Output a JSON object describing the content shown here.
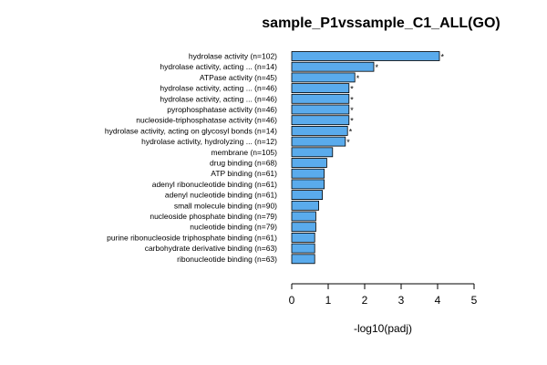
{
  "chart_data": {
    "type": "bar",
    "orientation": "horizontal",
    "title": "sample_P1vssample_C1_ALL(GO)",
    "xlabel": "-log10(padj)",
    "ylabel": "",
    "xlim": [
      0,
      5
    ],
    "xticks": [
      "0",
      "1",
      "2",
      "3",
      "4",
      "5"
    ],
    "grid": false,
    "bar_color": "#5aabec",
    "bar_border_color": "#000000",
    "categories": [
      "hydrolase activity (n=102)",
      "hydrolase activity, acting ... (n=14)",
      "ATPase activity (n=45)",
      "hydrolase activity, acting ... (n=46)",
      "hydrolase activity, acting ... (n=46)",
      "pyrophosphatase activity (n=46)",
      "nucleoside-triphosphatase activity (n=46)",
      "hydrolase activity, acting on glycosyl bonds (n=14)",
      "hydrolase activity, hydrolyzing ... (n=12)",
      "membrane (n=105)",
      "drug binding (n=68)",
      "ATP binding (n=61)",
      "adenyl ribonucleotide binding (n=61)",
      "adenyl nucleotide binding (n=61)",
      "small molecule binding (n=90)",
      "nucleoside phosphate binding (n=79)",
      "nucleotide binding (n=79)",
      "purine ribonucleoside triphosphate binding (n=61)",
      "carbohydrate derivative binding (n=63)",
      "ribonucleotide binding (n=63)"
    ],
    "values": [
      4.05,
      2.25,
      1.73,
      1.57,
      1.57,
      1.57,
      1.57,
      1.53,
      1.47,
      1.12,
      0.96,
      0.89,
      0.89,
      0.84,
      0.74,
      0.66,
      0.66,
      0.63,
      0.63,
      0.63
    ],
    "markers": [
      "*",
      "*",
      "*",
      "*",
      "*",
      "*",
      "*",
      "*",
      "*",
      "",
      "",
      "",
      "",
      "",
      "",
      "",
      "",
      "",
      "",
      ""
    ]
  }
}
